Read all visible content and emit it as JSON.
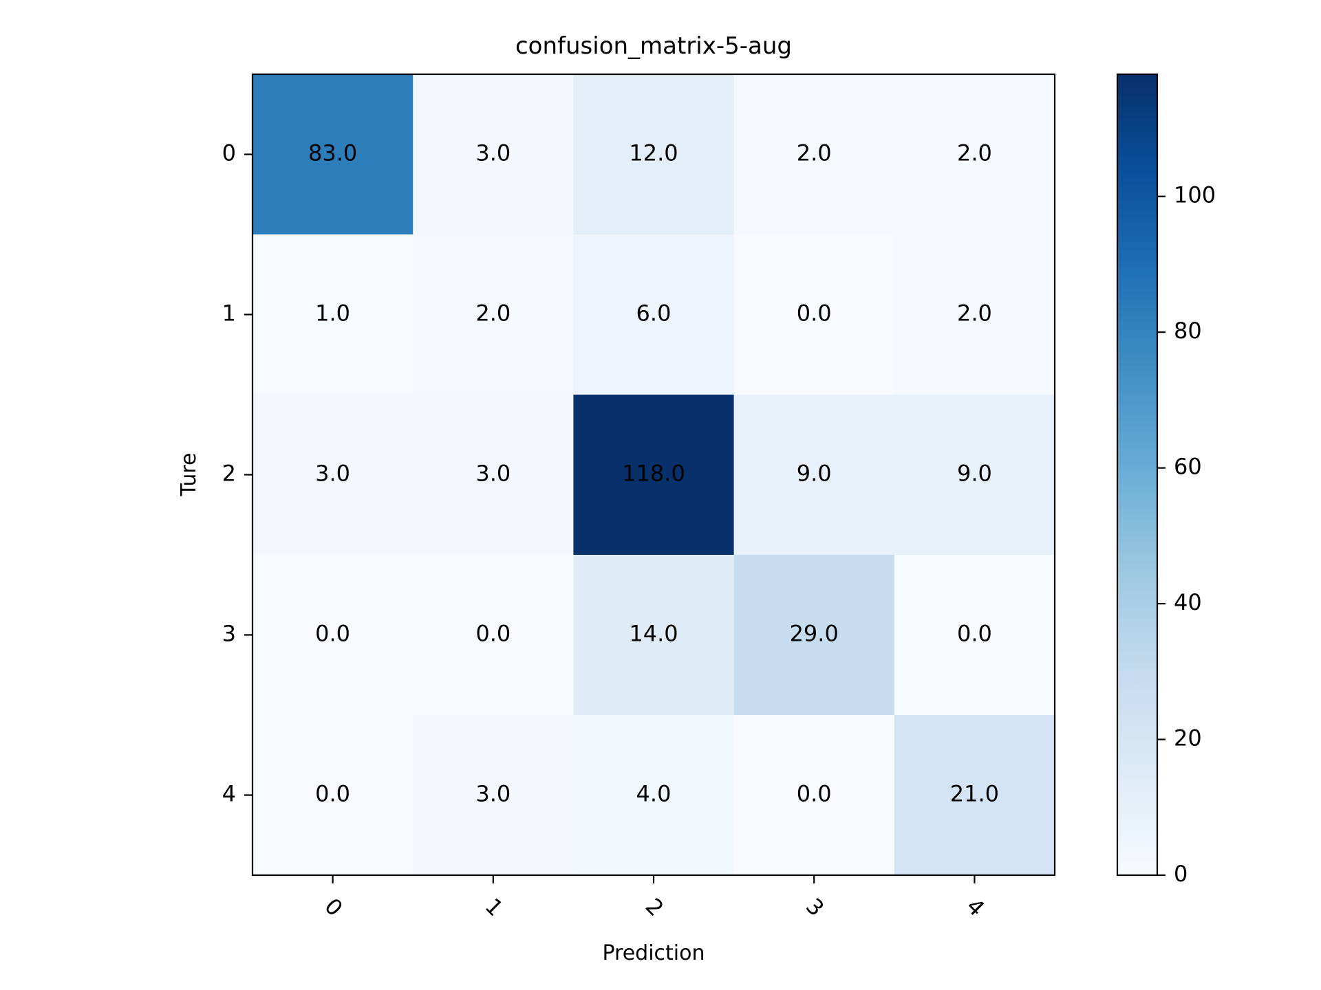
{
  "chart_data": {
    "type": "heatmap",
    "title": "confusion_matrix-5-aug",
    "xlabel": "Prediction",
    "ylabel": "Ture",
    "x_categories": [
      "0",
      "1",
      "2",
      "3",
      "4"
    ],
    "y_categories": [
      "0",
      "1",
      "2",
      "3",
      "4"
    ],
    "values": [
      [
        83,
        3,
        12,
        2,
        2
      ],
      [
        1,
        2,
        6,
        0,
        2
      ],
      [
        3,
        3,
        118,
        9,
        9
      ],
      [
        0,
        0,
        14,
        29,
        0
      ],
      [
        0,
        3,
        4,
        0,
        21
      ]
    ],
    "cell_labels": [
      [
        "83.0",
        "3.0",
        "12.0",
        "2.0",
        "2.0"
      ],
      [
        "1.0",
        "2.0",
        "6.0",
        "0.0",
        "2.0"
      ],
      [
        "3.0",
        "3.0",
        "118.0",
        "9.0",
        "9.0"
      ],
      [
        "0.0",
        "0.0",
        "14.0",
        "29.0",
        "0.0"
      ],
      [
        "0.0",
        "3.0",
        "4.0",
        "0.0",
        "21.0"
      ]
    ],
    "colormap": "Blues",
    "colorbar": {
      "range": [
        0,
        118
      ],
      "ticks": [
        0,
        20,
        40,
        60,
        80,
        100
      ],
      "tick_labels": [
        "0",
        "20",
        "40",
        "60",
        "80",
        "100"
      ]
    },
    "x_tick_rotation": -45
  }
}
